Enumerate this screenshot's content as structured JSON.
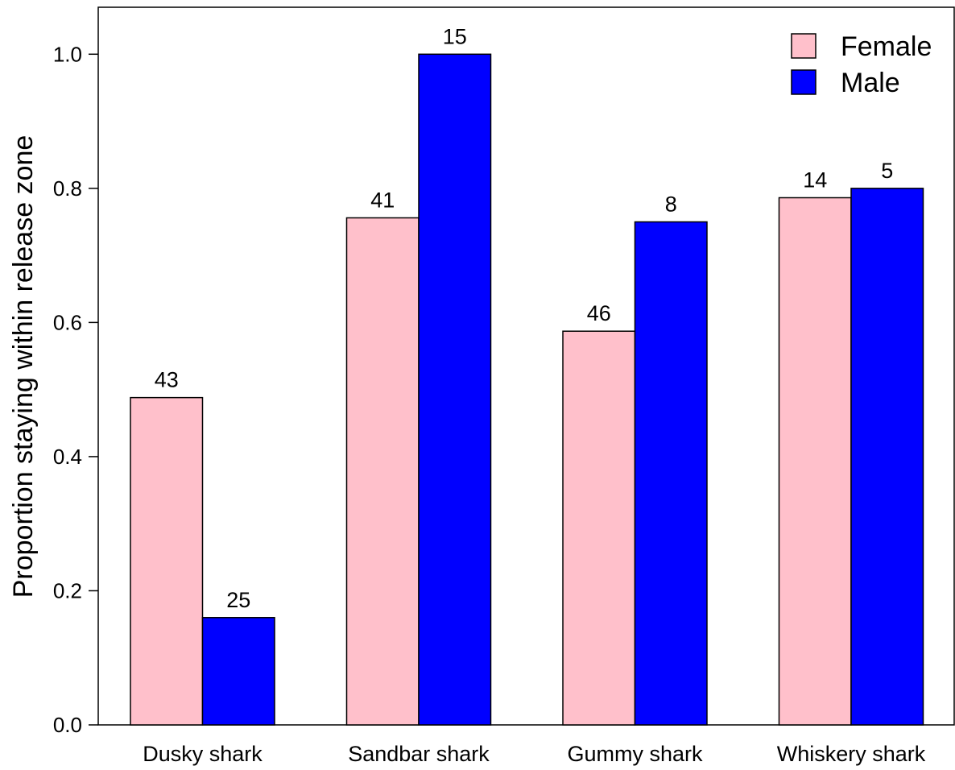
{
  "chart_data": {
    "type": "bar",
    "title": "",
    "xlabel": "",
    "ylabel": "Proportion staying within release zone",
    "ylim": [
      0,
      1.07
    ],
    "yticks": [
      "0.0",
      "0.2",
      "0.4",
      "0.6",
      "0.8",
      "1.0"
    ],
    "categories": [
      "Dusky shark",
      "Sandbar shark",
      "Gummy shark",
      "Whiskery shark"
    ],
    "series": [
      {
        "name": "Female",
        "color": "#FFC0CB",
        "values": [
          0.488,
          0.756,
          0.587,
          0.786
        ],
        "labels": [
          "43",
          "41",
          "46",
          "14"
        ]
      },
      {
        "name": "Male",
        "color": "#0000FF",
        "values": [
          0.16,
          1.0,
          0.75,
          0.8
        ],
        "labels": [
          "25",
          "15",
          "8",
          "5"
        ]
      }
    ],
    "legend": "top-right",
    "grid": false
  }
}
